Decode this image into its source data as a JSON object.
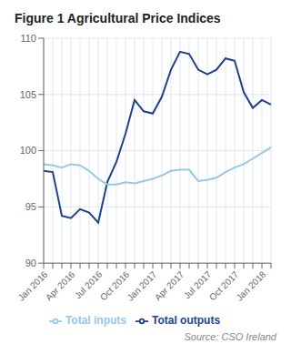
{
  "chart_data": {
    "type": "line",
    "title": "Figure 1 Agricultural Price Indices",
    "annotations": [
      "Source: CSO Ireland"
    ],
    "categories": [
      "Jan 2016",
      null,
      null,
      "Apr 2016",
      null,
      null,
      "Jul 2016",
      null,
      null,
      "Oct 2016",
      null,
      null,
      "Jan 2017",
      null,
      null,
      "Apr 2017",
      null,
      null,
      "Jul 2017",
      null,
      null,
      "Oct 2017",
      null,
      null,
      "Jan 2018",
      null
    ],
    "series": [
      {
        "name": "Total outputs",
        "color": "#1f3f8f",
        "values": [
          98.2,
          98.1,
          94.2,
          94.0,
          94.8,
          94.5,
          93.6,
          97.2,
          99.0,
          101.5,
          104.5,
          103.5,
          103.3,
          104.8,
          107.2,
          108.8,
          108.6,
          107.2,
          106.8,
          107.2,
          108.2,
          108.0,
          105.2,
          103.8,
          104.5,
          104.1
        ]
      },
      {
        "name": "Total inputs",
        "color": "#96c8e8",
        "values": [
          98.8,
          98.7,
          98.5,
          98.8,
          98.7,
          98.2,
          97.5,
          97.0,
          97.0,
          97.2,
          97.1,
          97.3,
          97.5,
          97.8,
          98.2,
          98.3,
          98.3,
          97.3,
          97.4,
          97.6,
          98.1,
          98.5,
          98.8,
          99.3,
          99.8,
          100.3
        ]
      }
    ],
    "ylim": [
      90,
      110
    ],
    "yticks": [
      90,
      95,
      100,
      105,
      110
    ],
    "grid": true,
    "legend": "bottom"
  }
}
